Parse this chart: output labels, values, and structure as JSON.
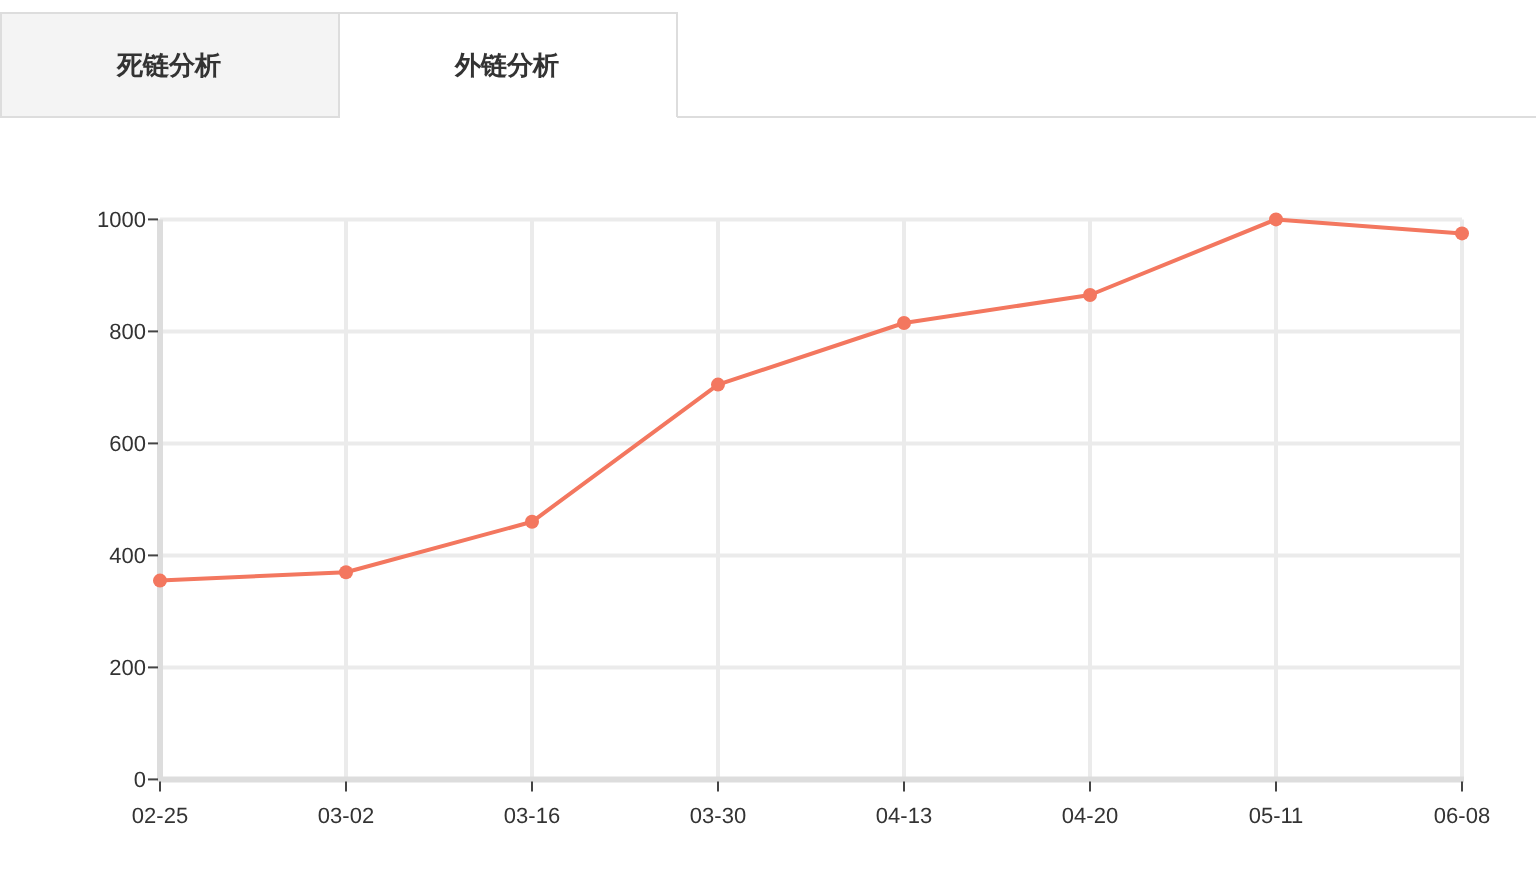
{
  "chart_data": {
    "type": "line",
    "title": "外链分析",
    "annotations": [
      "死链分析"
    ],
    "categories": [
      "02-25",
      "03-02",
      "03-16",
      "03-30",
      "04-13",
      "04-20",
      "05-11",
      "06-08"
    ],
    "values": [
      355,
      370,
      460,
      705,
      815,
      865,
      1000,
      975
    ],
    "color": "#f3775f",
    "ylim": [
      0,
      1000
    ],
    "yticks": [
      0,
      200,
      400,
      600,
      800,
      1000
    ],
    "grid": true,
    "marker": "circle"
  }
}
